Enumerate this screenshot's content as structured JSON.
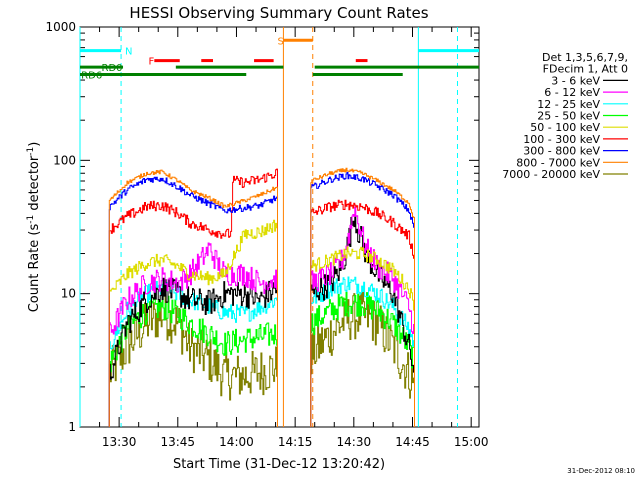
{
  "chart_data": {
    "type": "line",
    "title": "HESSI Observing Summary Count Rates",
    "xlabel": "Start Time (31-Dec-12 13:20:42)",
    "ylabel_parts": [
      "Count Rate (s",
      "-1",
      " detector",
      "-1",
      ")"
    ],
    "ylog": true,
    "ylim": [
      1,
      1000
    ],
    "xlim_min": [
      0,
      102
    ],
    "x_ticks": [
      {
        "min": 10,
        "label": "13:30"
      },
      {
        "min": 25,
        "label": "13:45"
      },
      {
        "min": 40,
        "label": "14:00"
      },
      {
        "min": 55,
        "label": "14:15"
      },
      {
        "min": 70,
        "label": "14:30"
      },
      {
        "min": 85,
        "label": "14:45"
      },
      {
        "min": 100,
        "label": "15:00"
      }
    ],
    "y_ticks": [
      {
        "value": 1,
        "label": "1"
      },
      {
        "value": 10,
        "label": "10"
      },
      {
        "value": 100,
        "label": "100"
      },
      {
        "value": 1000,
        "label": "1000"
      }
    ],
    "legend": {
      "header": [
        "Det 1,3,5,6,7,9,",
        "FDecim 1, Att 0"
      ],
      "entries": [
        {
          "label": "3 - 6 keV",
          "color": "#000000"
        },
        {
          "label": "6 - 12 keV",
          "color": "#ff00ff"
        },
        {
          "label": "12 - 25 keV",
          "color": "#00ffff"
        },
        {
          "label": "25 - 50 keV",
          "color": "#00ff00"
        },
        {
          "label": "50 - 100 keV",
          "color": "#dddd00"
        },
        {
          "label": "100 - 300 keV",
          "color": "#ff0000"
        },
        {
          "label": "300 - 800 keV",
          "color": "#0000ff"
        },
        {
          "label": "800 - 7000 keV",
          "color": "#ff8000"
        },
        {
          "label": "7000 - 20000 keV",
          "color": "#808000"
        }
      ]
    },
    "segments": [
      {
        "start": 7.5,
        "end": 50.5
      },
      {
        "start": 59.0,
        "end": 85.5
      }
    ],
    "series": [
      {
        "color": "#808000",
        "seg1": [
          [
            7.5,
            2.5
          ],
          [
            12,
            4
          ],
          [
            17,
            6
          ],
          [
            21,
            7
          ],
          [
            25,
            6
          ],
          [
            28,
            4
          ],
          [
            33,
            3.2
          ],
          [
            37,
            2.4
          ],
          [
            42,
            2.4
          ],
          [
            50,
            2.8
          ]
        ],
        "seg2": [
          [
            59,
            3.5
          ],
          [
            64,
            5
          ],
          [
            68,
            6.5
          ],
          [
            72,
            7
          ],
          [
            76,
            6
          ],
          [
            80,
            4
          ],
          [
            84,
            2.5
          ],
          [
            85.5,
            2
          ]
        ],
        "noise": 0.18
      },
      {
        "color": "#00ff00",
        "seg1": [
          [
            7.5,
            3
          ],
          [
            12,
            5.5
          ],
          [
            17,
            7.5
          ],
          [
            21,
            8
          ],
          [
            25,
            7
          ],
          [
            28,
            6
          ],
          [
            33,
            5
          ],
          [
            37,
            4.2
          ],
          [
            42,
            4.5
          ],
          [
            50,
            5
          ]
        ],
        "seg2": [
          [
            59,
            6
          ],
          [
            64,
            7.5
          ],
          [
            68,
            8.5
          ],
          [
            72,
            8.5
          ],
          [
            76,
            7.5
          ],
          [
            80,
            6
          ],
          [
            84,
            4
          ],
          [
            85.5,
            3
          ]
        ],
        "noise": 0.1
      },
      {
        "color": "#00ffff",
        "seg1": [
          [
            7.5,
            4
          ],
          [
            12,
            7.5
          ],
          [
            17,
            10
          ],
          [
            21,
            11
          ],
          [
            25,
            10
          ],
          [
            28,
            9
          ],
          [
            33,
            8
          ],
          [
            37,
            7.2
          ],
          [
            42,
            7
          ],
          [
            50,
            9
          ]
        ],
        "seg2": [
          [
            59,
            9
          ],
          [
            64,
            11
          ],
          [
            68,
            12
          ],
          [
            72,
            11.5
          ],
          [
            76,
            10
          ],
          [
            80,
            8
          ],
          [
            84,
            5.5
          ],
          [
            85.5,
            4
          ]
        ],
        "noise": 0.07
      },
      {
        "color": "#000000",
        "seg1": [
          [
            7.5,
            2.5
          ],
          [
            12,
            6
          ],
          [
            17,
            9
          ],
          [
            21,
            11
          ],
          [
            25,
            10
          ],
          [
            28,
            9
          ],
          [
            33,
            8.5
          ],
          [
            37,
            10
          ],
          [
            42,
            10
          ],
          [
            46,
            9
          ],
          [
            50,
            11
          ]
        ],
        "seg2": [
          [
            59,
            10
          ],
          [
            64,
            12
          ],
          [
            67,
            16
          ],
          [
            69,
            28
          ],
          [
            70,
            40
          ],
          [
            71,
            30
          ],
          [
            73,
            20
          ],
          [
            76,
            14
          ],
          [
            80,
            10
          ],
          [
            84,
            4
          ],
          [
            85.5,
            2.5
          ]
        ],
        "noise": 0.1
      },
      {
        "color": "#ff00ff",
        "seg1": [
          [
            7.5,
            5
          ],
          [
            12,
            9
          ],
          [
            17,
            12
          ],
          [
            21,
            13
          ],
          [
            25,
            12
          ],
          [
            28,
            14
          ],
          [
            31,
            18
          ],
          [
            33,
            22
          ],
          [
            35,
            17
          ],
          [
            37,
            14
          ],
          [
            42,
            14
          ],
          [
            46,
            12
          ],
          [
            50,
            13
          ]
        ],
        "seg2": [
          [
            59,
            12
          ],
          [
            64,
            14
          ],
          [
            67,
            18
          ],
          [
            69,
            30
          ],
          [
            70,
            45
          ],
          [
            71,
            35
          ],
          [
            73,
            22
          ],
          [
            76,
            16
          ],
          [
            80,
            13
          ],
          [
            84,
            8
          ],
          [
            85.5,
            5
          ]
        ],
        "noise": 0.09
      },
      {
        "color": "#dddd00",
        "seg1": [
          [
            7.5,
            10
          ],
          [
            12,
            14
          ],
          [
            17,
            17
          ],
          [
            21,
            18
          ],
          [
            25,
            16
          ],
          [
            28,
            14
          ],
          [
            33,
            13
          ],
          [
            37,
            14
          ],
          [
            42,
            28
          ],
          [
            46,
            29
          ],
          [
            50,
            33
          ]
        ],
        "seg2": [
          [
            59,
            16
          ],
          [
            64,
            18
          ],
          [
            68,
            20
          ],
          [
            72,
            20
          ],
          [
            76,
            18
          ],
          [
            80,
            15
          ],
          [
            84,
            11
          ],
          [
            85.5,
            8
          ]
        ],
        "noise": 0.05
      },
      {
        "color": "#ff0000",
        "seg1": [
          [
            7.5,
            30
          ],
          [
            12,
            38
          ],
          [
            17,
            45
          ],
          [
            21,
            46
          ],
          [
            25,
            40
          ],
          [
            28,
            34
          ],
          [
            33,
            30
          ],
          [
            37,
            28
          ],
          [
            38.5,
            28
          ],
          [
            39,
            70
          ],
          [
            42,
            68
          ],
          [
            46,
            72
          ],
          [
            50,
            80
          ],
          [
            51,
            92
          ]
        ],
        "seg2": [
          [
            59,
            40
          ],
          [
            64,
            45
          ],
          [
            68,
            47
          ],
          [
            72,
            45
          ],
          [
            76,
            40
          ],
          [
            80,
            34
          ],
          [
            84,
            27
          ],
          [
            85.5,
            18
          ]
        ],
        "noise": 0.04
      },
      {
        "color": "#0000ff",
        "seg1": [
          [
            7.5,
            45
          ],
          [
            12,
            60
          ],
          [
            17,
            72
          ],
          [
            21,
            73
          ],
          [
            25,
            63
          ],
          [
            28,
            55
          ],
          [
            33,
            47
          ],
          [
            37,
            42
          ],
          [
            42,
            44
          ],
          [
            46,
            46
          ],
          [
            50,
            52
          ]
        ],
        "seg2": [
          [
            59,
            62
          ],
          [
            64,
            72
          ],
          [
            68,
            77
          ],
          [
            72,
            73
          ],
          [
            76,
            64
          ],
          [
            80,
            55
          ],
          [
            84,
            42
          ],
          [
            85.5,
            30
          ]
        ],
        "noise": 0.025
      },
      {
        "color": "#ff8000",
        "seg1": [
          [
            7.5,
            50
          ],
          [
            12,
            68
          ],
          [
            17,
            80
          ],
          [
            21,
            82
          ],
          [
            25,
            70
          ],
          [
            28,
            60
          ],
          [
            33,
            52
          ],
          [
            37,
            45
          ],
          [
            42,
            50
          ],
          [
            46,
            55
          ],
          [
            50,
            62
          ]
        ],
        "seg2": [
          [
            59,
            70
          ],
          [
            64,
            80
          ],
          [
            68,
            85
          ],
          [
            72,
            80
          ],
          [
            76,
            70
          ],
          [
            80,
            60
          ],
          [
            84,
            48
          ],
          [
            85.5,
            35
          ]
        ],
        "noise": 0.015
      }
    ],
    "vertical_lines": [
      {
        "min": 0,
        "color": "#00ffff",
        "dash": false
      },
      {
        "min": 10.5,
        "color": "#00ffff",
        "dash": true
      },
      {
        "min": 52.0,
        "color": "#ff8000",
        "dash": false
      },
      {
        "min": 59.5,
        "color": "#ff8000",
        "dash": true
      },
      {
        "min": 86.5,
        "color": "#00ffff",
        "dash": false
      },
      {
        "min": 96.5,
        "color": "#00ffff",
        "dash": true
      }
    ],
    "flag_bars": [
      {
        "name": "N",
        "color": "#00ffff",
        "level": 665,
        "ranges": [
          [
            0,
            10.5
          ],
          [
            86.5,
            102
          ]
        ],
        "label_at": 11.5
      },
      {
        "name": "S",
        "color": "#ff8000",
        "level": 795,
        "ranges": [
          [
            52,
            59.5
          ]
        ],
        "label_at": 50.5
      },
      {
        "name": "F",
        "color": "#ff0000",
        "level": 560,
        "ranges": [
          [
            19,
            25.5
          ],
          [
            31,
            34
          ],
          [
            44.5,
            49.5
          ],
          [
            70.5,
            73.5
          ]
        ],
        "label_at": 17.5
      },
      {
        "name": "RD0",
        "color": "#008000",
        "level": 500,
        "ranges": [
          [
            0,
            11
          ],
          [
            24.5,
            52
          ],
          [
            60,
            102
          ]
        ],
        "label_at": 5.5
      },
      {
        "name": "RD6",
        "color": "#008000",
        "level": 440,
        "ranges": [
          [
            0,
            42.5
          ],
          [
            59.5,
            82.5
          ]
        ],
        "label_at": 0.3
      }
    ]
  },
  "timestamp": "31-Dec-2012 08:10"
}
